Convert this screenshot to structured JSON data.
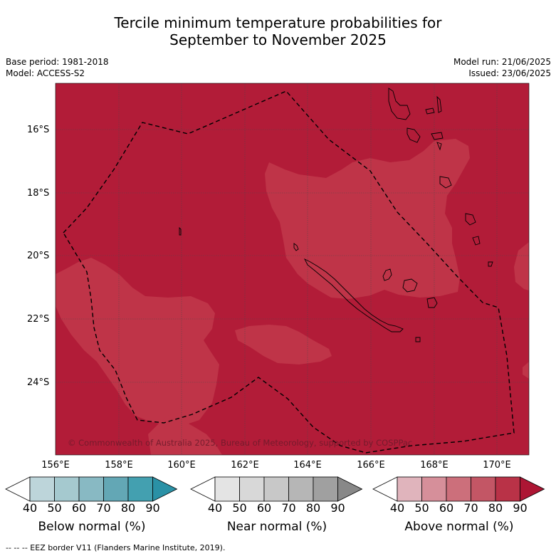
{
  "title": {
    "line1": "Tercile minimum temperature probabilities for",
    "line2": "September to November 2025"
  },
  "meta_left": {
    "base_period": "Base period: 1981-2018",
    "model": "Model: ACCESS-S2"
  },
  "meta_right": {
    "model_run": "Model run: 21/06/2025",
    "issued": "Issued: 23/06/2025"
  },
  "map": {
    "lat_labels": [
      "16°S",
      "18°S",
      "20°S",
      "22°S",
      "24°S"
    ],
    "lon_labels": [
      "156°E",
      "158°E",
      "160°E",
      "162°E",
      "164°E",
      "166°E",
      "168°E",
      "170°E"
    ],
    "copyright": "© Commonwealth of Australia 2025, Bureau of Meteorology, supported by COSPPac",
    "colors": {
      "above_90": "#b21c38",
      "above_80": "#bf3448",
      "near_40": "#e5e5e5"
    }
  },
  "colorbars": [
    {
      "name": "below",
      "label": "Below normal (%)",
      "ticks": [
        "40",
        "50",
        "60",
        "70",
        "80",
        "90"
      ],
      "colors": [
        "#ffffff",
        "#bdd5da",
        "#a5c9cf",
        "#88b9c3",
        "#63a7b5",
        "#43a0b0",
        "#2a91a6"
      ]
    },
    {
      "name": "near",
      "label": "Near normal (%)",
      "ticks": [
        "40",
        "50",
        "60",
        "70",
        "80",
        "90"
      ],
      "colors": [
        "#ffffff",
        "#e4e4e4",
        "#d8d8d8",
        "#c8c8c8",
        "#b6b6b6",
        "#a0a0a0",
        "#888888"
      ]
    },
    {
      "name": "above",
      "label": "Above normal (%)",
      "ticks": [
        "40",
        "50",
        "60",
        "70",
        "80",
        "90"
      ],
      "colors": [
        "#ffffff",
        "#e0b4bc",
        "#d68f9a",
        "#cc6f7b",
        "#c35665",
        "#b93247",
        "#ad1634"
      ]
    }
  ],
  "legend_footer": "-- -- -- EEZ border V11 (Flanders Marine Institute, 2019)."
}
